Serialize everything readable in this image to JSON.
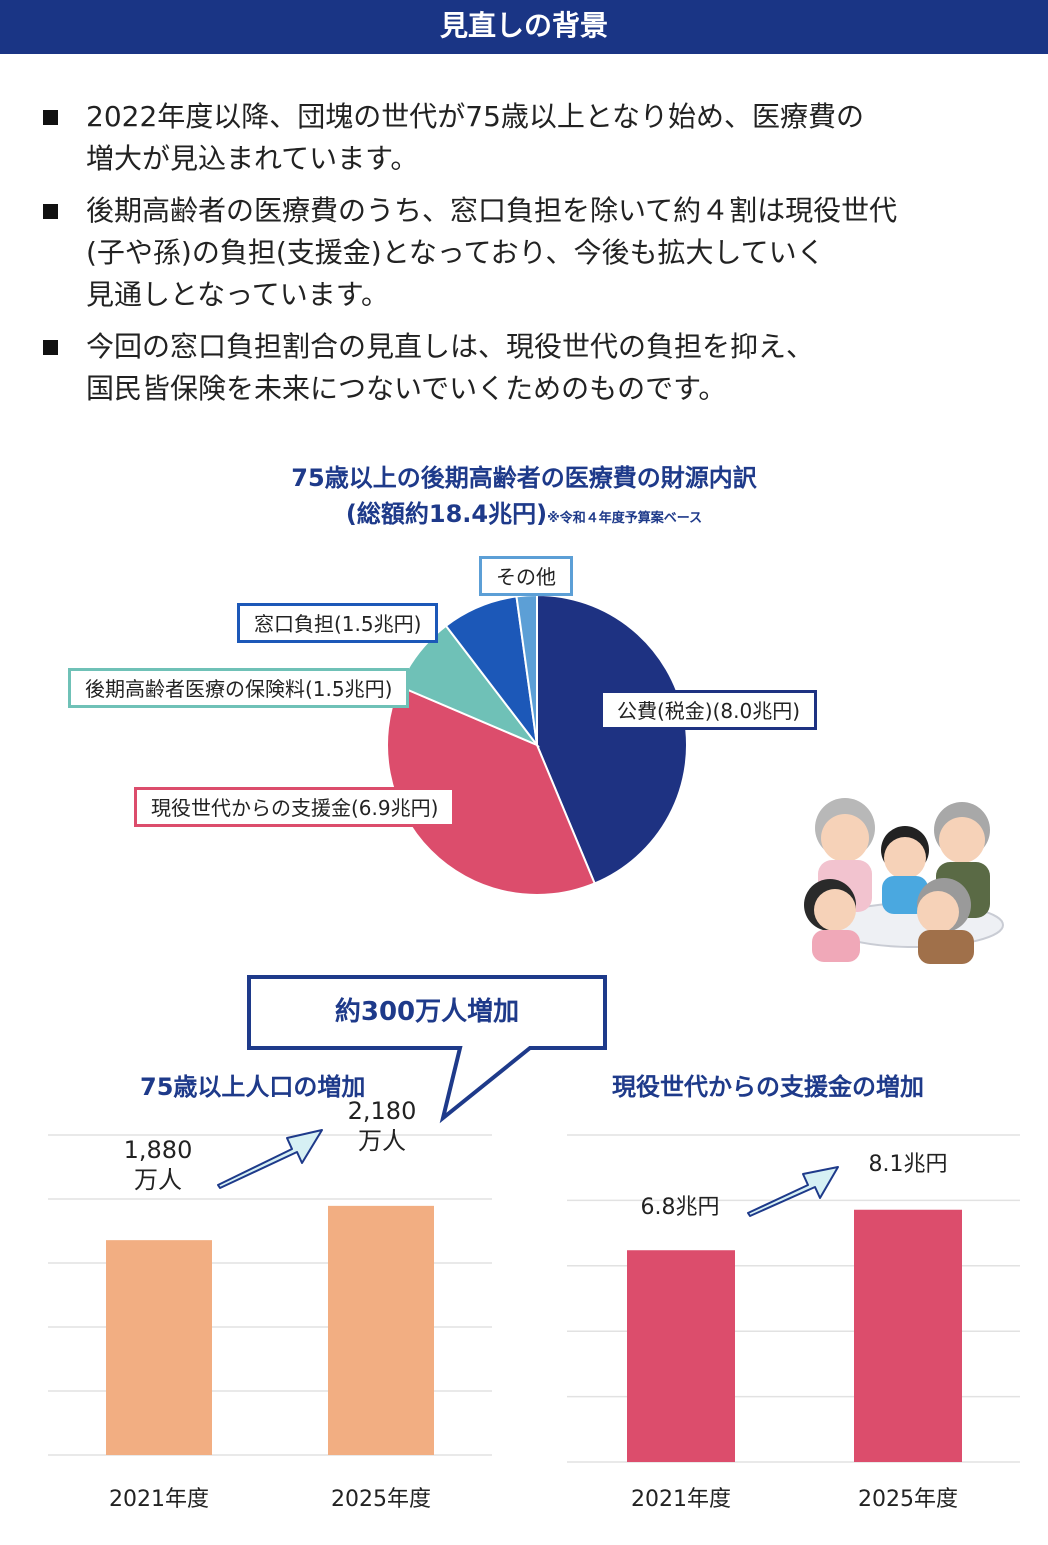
{
  "header": {
    "title": "見直しの背景"
  },
  "bullets": [
    {
      "line1": "2022年度以降、団塊の世代が75歳以上となり始め、医療費の",
      "line2": "増大が見込まれています。",
      "line3": ""
    },
    {
      "line1": "後期高齢者の医療費のうち、窓口負担を除いて約４割は現役世代",
      "line2": "(子や孫)の負担(支援金)となっており、今後も拡大していく",
      "line3": "見通しとなっています。"
    },
    {
      "line1": "今回の窓口負担割合の見直しは、現役世代の負担を抑え、",
      "line2": "国民皆保険を未来につないでいくためのものです。",
      "line3": ""
    }
  ],
  "pie": {
    "title_line1": "75歳以上の後期高齢者の医療費の財源内訳",
    "title_line2": "(総額約18.4兆円)",
    "note": "※令和４年度予算案ベース",
    "labels": {
      "tax": "公費(税金)(8.0兆円)",
      "support": "現役世代からの支援金(6.9兆円)",
      "premium": "後期高齢者医療の保険料(1.5兆円)",
      "copay": "窓口負担(1.5兆円)",
      "other": "その他"
    },
    "colors": {
      "tax": "#1e3282",
      "support": "#dc4d6c",
      "premium": "#6fc1b7",
      "copay": "#1c58b8",
      "other": "#5c9fd6"
    }
  },
  "callout": {
    "text": "約300万人増加"
  },
  "chart_data": [
    {
      "type": "pie",
      "title": "75歳以上の後期高齢者の医療費の財源内訳",
      "subtitle": "(総額約18.4兆円)",
      "categories": [
        "公費(税金)",
        "現役世代からの支援金",
        "後期高齢者医療の保険料",
        "窓口負担",
        "その他"
      ],
      "values": [
        8.0,
        6.9,
        1.5,
        1.5,
        0.4
      ],
      "unit": "兆円"
    },
    {
      "type": "bar",
      "title": "75歳以上人口の増加",
      "categories": [
        "2021年度",
        "2025年度"
      ],
      "values": [
        1880,
        2180
      ],
      "data_labels": [
        "1,880 万人",
        "2,180 万人"
      ],
      "ylim": [
        0,
        2800
      ],
      "color": "#f2ae82",
      "grid": true
    },
    {
      "type": "bar",
      "title": "現役世代からの支援金の増加",
      "categories": [
        "2021年度",
        "2025年度"
      ],
      "values": [
        6.8,
        8.1
      ],
      "data_labels": [
        "6.8兆円",
        "8.1兆円"
      ],
      "ylim": [
        0,
        10.5
      ],
      "color": "#dc4d6c",
      "grid": true
    }
  ]
}
